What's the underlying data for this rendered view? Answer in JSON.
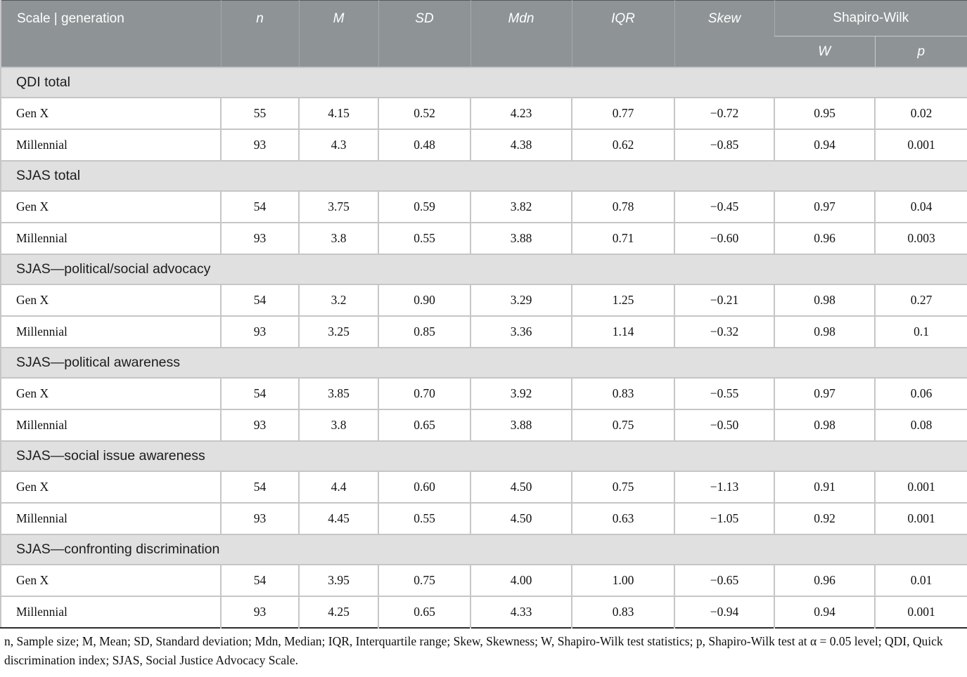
{
  "table": {
    "header": {
      "scale_label": "Scale | generation",
      "columns": [
        "n",
        "M",
        "SD",
        "Mdn",
        "IQR",
        "Skew"
      ],
      "shapiro_label": "Shapiro-Wilk",
      "shapiro_sub": [
        "W",
        "p"
      ]
    },
    "sections": [
      {
        "title": "QDI total",
        "rows": [
          {
            "label": "Gen X",
            "values": [
              "55",
              "4.15",
              "0.52",
              "4.23",
              "0.77",
              "−0.72",
              "0.95",
              "0.02"
            ]
          },
          {
            "label": "Millennial",
            "values": [
              "93",
              "4.3",
              "0.48",
              "4.38",
              "0.62",
              "−0.85",
              "0.94",
              "0.001"
            ]
          }
        ]
      },
      {
        "title": "SJAS total",
        "rows": [
          {
            "label": "Gen X",
            "values": [
              "54",
              "3.75",
              "0.59",
              "3.82",
              "0.78",
              "−0.45",
              "0.97",
              "0.04"
            ]
          },
          {
            "label": "Millennial",
            "values": [
              "93",
              "3.8",
              "0.55",
              "3.88",
              "0.71",
              "−0.60",
              "0.96",
              "0.003"
            ]
          }
        ]
      },
      {
        "title": "SJAS—political/social advocacy",
        "rows": [
          {
            "label": "Gen X",
            "values": [
              "54",
              "3.2",
              "0.90",
              "3.29",
              "1.25",
              "−0.21",
              "0.98",
              "0.27"
            ]
          },
          {
            "label": "Millennial",
            "values": [
              "93",
              "3.25",
              "0.85",
              "3.36",
              "1.14",
              "−0.32",
              "0.98",
              "0.1"
            ]
          }
        ]
      },
      {
        "title": "SJAS—political awareness",
        "rows": [
          {
            "label": "Gen X",
            "values": [
              "54",
              "3.85",
              "0.70",
              "3.92",
              "0.83",
              "−0.55",
              "0.97",
              "0.06"
            ]
          },
          {
            "label": "Millennial",
            "values": [
              "93",
              "3.8",
              "0.65",
              "3.88",
              "0.75",
              "−0.50",
              "0.98",
              "0.08"
            ]
          }
        ]
      },
      {
        "title": "SJAS—social issue awareness",
        "rows": [
          {
            "label": "Gen X",
            "values": [
              "54",
              "4.4",
              "0.60",
              "4.50",
              "0.75",
              "−1.13",
              "0.91",
              "0.001"
            ]
          },
          {
            "label": "Millennial",
            "values": [
              "93",
              "4.45",
              "0.55",
              "4.50",
              "0.63",
              "−1.05",
              "0.92",
              "0.001"
            ]
          }
        ]
      },
      {
        "title": "SJAS—confronting discrimination",
        "rows": [
          {
            "label": "Gen X",
            "values": [
              "54",
              "3.95",
              "0.75",
              "4.00",
              "1.00",
              "−0.65",
              "0.96",
              "0.01"
            ]
          },
          {
            "label": "Millennial",
            "values": [
              "93",
              "4.25",
              "0.65",
              "4.33",
              "0.83",
              "−0.94",
              "0.94",
              "0.001"
            ]
          }
        ]
      }
    ],
    "footnote": "n, Sample size; M, Mean; SD, Standard deviation; Mdn, Median; IQR, Interquartile range; Skew, Skewness; W, Shapiro-Wilk test statistics; p, Shapiro-Wilk test at α = 0.05 level; QDI, Quick discrimination index; SJAS, Social Justice Advocacy Scale."
  },
  "colors": {
    "header_bg": "#8e9396",
    "section_bg": "#e0e0e0",
    "border_light": "#c6c6c6",
    "border_dark": "#2e2e2e"
  }
}
